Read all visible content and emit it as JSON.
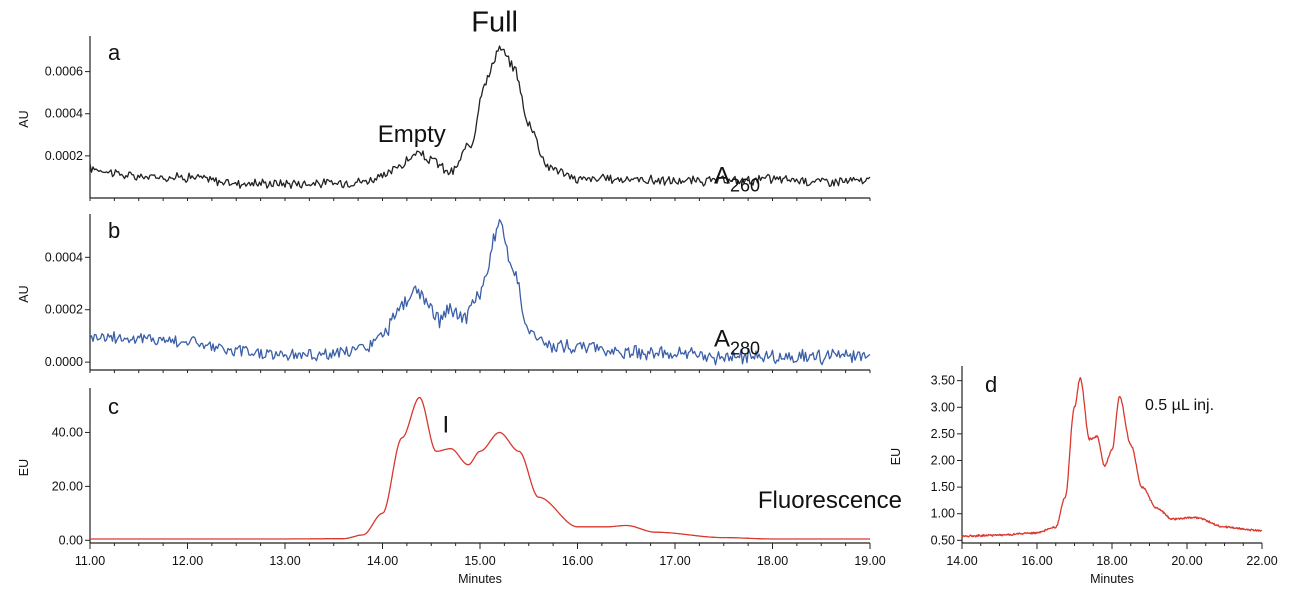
{
  "chart_data": [
    {
      "panel": "a",
      "type": "line",
      "ylabel": "AU",
      "xlabel": "",
      "xlim": [
        11.0,
        19.0
      ],
      "ylim": [
        0,
        0.00075
      ],
      "yticks": [
        "0.0002",
        "0.0004",
        "0.0006"
      ],
      "xticks": [],
      "color": "#222222",
      "annotations": [
        {
          "text": "Full",
          "x": 15.15,
          "y": 0.00079
        },
        {
          "text": "Empty",
          "x": 14.3,
          "y": 0.000265
        },
        {
          "text": "A",
          "sub": "260",
          "x": 17.4,
          "y": 7e-05
        }
      ],
      "series": [
        {
          "x": [
            11.0,
            11.5,
            12.0,
            12.5,
            13.0,
            13.5,
            13.8,
            14.0,
            14.2,
            14.35,
            14.5,
            14.7,
            14.9,
            15.05,
            15.2,
            15.35,
            15.5,
            15.7,
            16.0,
            16.5,
            17.0,
            17.5,
            18.0,
            18.5,
            19.0
          ],
          "y": [
            0.00014,
            0.0001,
            0.0001,
            7e-05,
            7e-05,
            7e-05,
            8e-05,
            0.0001,
            0.00016,
            0.00021,
            0.00018,
            0.00012,
            0.00025,
            0.00055,
            0.00071,
            0.00062,
            0.00035,
            0.00015,
            9e-05,
            9e-05,
            8e-05,
            8e-05,
            9e-05,
            8e-05,
            8e-05
          ]
        }
      ]
    },
    {
      "panel": "b",
      "type": "line",
      "ylabel": "AU",
      "xlabel": "",
      "xlim": [
        11.0,
        19.0
      ],
      "ylim": [
        -3e-05,
        0.00055
      ],
      "yticks": [
        "0.0000",
        "0.0002",
        "0.0004"
      ],
      "xticks": [],
      "color": "#3a5fa8",
      "annotations": [
        {
          "text": "A",
          "sub": "280",
          "x": 17.4,
          "y": 6e-05
        }
      ],
      "series": [
        {
          "x": [
            11.0,
            11.5,
            12.0,
            12.5,
            13.0,
            13.5,
            13.8,
            14.0,
            14.2,
            14.35,
            14.5,
            14.6,
            14.7,
            14.85,
            15.0,
            15.2,
            15.35,
            15.5,
            15.7,
            16.0,
            16.5,
            17.0,
            17.5,
            18.0,
            18.5,
            19.0
          ],
          "y": [
            0.0001,
            9e-05,
            8e-05,
            4e-05,
            3e-05,
            3e-05,
            5e-05,
            0.0001,
            0.00022,
            0.00027,
            0.0002,
            0.00016,
            0.0002,
            0.00017,
            0.00027,
            0.00052,
            0.00035,
            0.00012,
            6e-05,
            6e-05,
            4e-05,
            3e-05,
            2e-05,
            2e-05,
            2e-05,
            2e-05
          ]
        }
      ]
    },
    {
      "panel": "c",
      "type": "line",
      "ylabel": "EU",
      "xlabel": "Minutes",
      "xlim": [
        11.0,
        19.0
      ],
      "ylim": [
        -1,
        55
      ],
      "yticks": [
        "0.00",
        "20.00",
        "40.00"
      ],
      "xticks": [
        "11.00",
        "12.00",
        "13.00",
        "14.00",
        "15.00",
        "16.00",
        "17.00",
        "18.00",
        "19.00"
      ],
      "color": "#d9382f",
      "annotations": [
        {
          "text": "I",
          "x": 14.65,
          "y": 40
        },
        {
          "text": "Fluorescence",
          "x": 17.85,
          "y": 12
        }
      ],
      "series": [
        {
          "x": [
            11.0,
            12.0,
            13.0,
            13.6,
            13.8,
            14.0,
            14.2,
            14.38,
            14.55,
            14.7,
            14.88,
            15.0,
            15.2,
            15.4,
            15.6,
            16.0,
            16.3,
            16.5,
            16.8,
            17.5,
            18.0,
            19.0
          ],
          "y": [
            0.5,
            0.5,
            0.5,
            0.6,
            2,
            10,
            38,
            53,
            33,
            34,
            28,
            33,
            40,
            33,
            16,
            5,
            5,
            5.5,
            3,
            1,
            0.5,
            0.5
          ]
        }
      ]
    },
    {
      "panel": "d",
      "type": "line",
      "ylabel": "EU",
      "xlabel": "Minutes",
      "xlim": [
        14.0,
        22.0
      ],
      "ylim": [
        0.45,
        3.7
      ],
      "yticks": [
        "0.50",
        "1.00",
        "1.50",
        "2.00",
        "2.50",
        "3.00",
        "3.50"
      ],
      "xticks": [
        "14.00",
        "16.00",
        "18.00",
        "20.00",
        "22.00"
      ],
      "color": "#d9382f",
      "annotations": [
        {
          "text": "0.5 µL inj.",
          "x": 19.8,
          "y": 2.95
        }
      ],
      "series": [
        {
          "x": [
            14.0,
            15.0,
            16.0,
            16.5,
            16.75,
            17.0,
            17.15,
            17.4,
            17.6,
            17.8,
            18.0,
            18.2,
            18.5,
            18.8,
            19.2,
            19.6,
            20.2,
            21.0,
            22.0
          ],
          "y": [
            0.58,
            0.6,
            0.64,
            0.75,
            1.3,
            3.0,
            3.55,
            2.4,
            2.45,
            1.9,
            2.2,
            3.2,
            2.3,
            1.5,
            1.1,
            0.9,
            0.93,
            0.75,
            0.68
          ]
        }
      ]
    }
  ]
}
